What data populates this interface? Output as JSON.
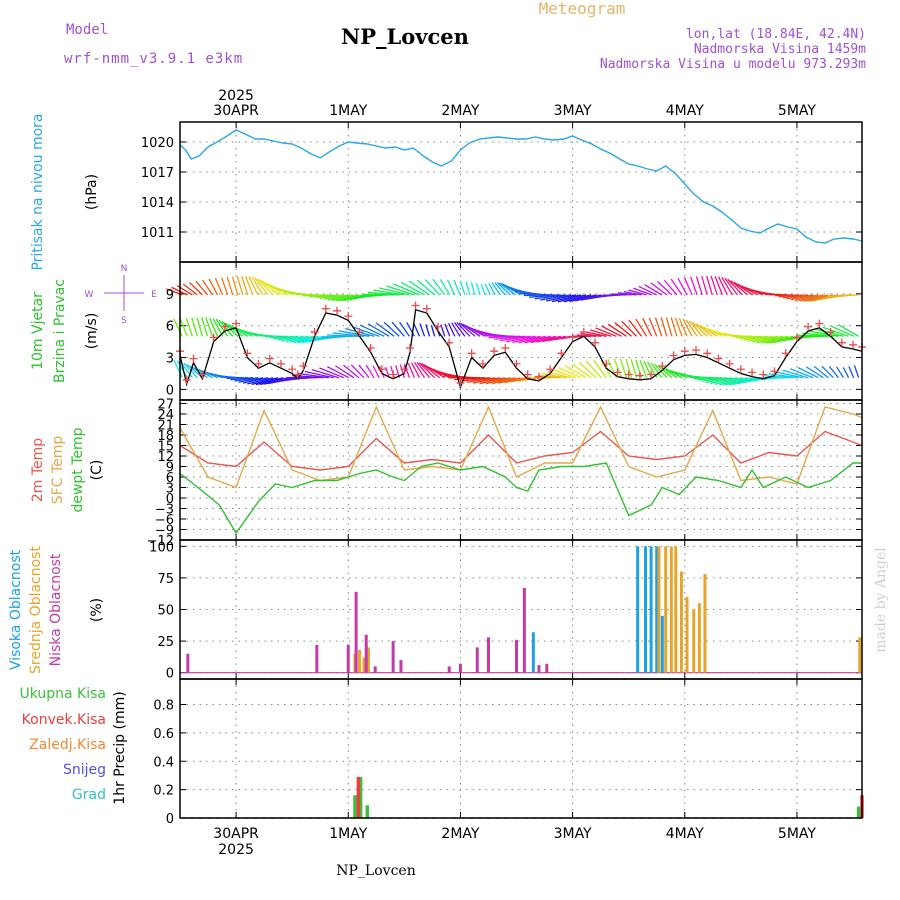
{
  "header": {
    "model_label": "Model",
    "model_value": "wrf-nmm_v3.9.1 e3km",
    "meteogram_label": "Meteogram",
    "station_title": "NP_Lovcen",
    "location_lines": [
      "lon,lat (18.84E, 42.4N)",
      "Nadmorska Visina 1459m",
      "Nadmorska Visina u modelu 973.293m"
    ]
  },
  "footer": {
    "station": "NP_Lovcen",
    "watermark": "made by Angel"
  },
  "colors": {
    "pressure": "#2aa7e4",
    "temp2m": "#e8574e",
    "sfc": "#e3a84a",
    "dew": "#2fc12f",
    "wind_speed": "#000000",
    "wind_marker": "#e84c4c",
    "cloud_high": "#1ea0e6",
    "cloud_mid": "#e6a52a",
    "cloud_low": "#c43aa8",
    "rain_total": "#3cbf3c",
    "rain_conv": "#e84040",
    "rain_frz": "#f08a30",
    "snow": "#5050e0",
    "hail": "#30c0c0",
    "label_purple": "#a050d0"
  },
  "chart_data": {
    "type": "meteogram",
    "time_axis": {
      "top_year": "2025",
      "bottom_year": "2025",
      "top_labels": [
        "30APR",
        "1MAY",
        "2MAY",
        "3MAY",
        "4MAY",
        "5MAY"
      ],
      "bottom_labels": [
        "30APR",
        "1MAY",
        "2MAY",
        "3MAY",
        "4MAY",
        "5MAY"
      ],
      "day_positions": [
        0.5,
        1.5,
        2.5,
        3.5,
        4.5,
        5.5
      ],
      "range": [
        0,
        6.08
      ]
    },
    "panels": [
      {
        "id": "pressure",
        "labels": [
          "Pritisak na nivou mora"
        ],
        "unit": "(hPa)",
        "ylim": [
          1008,
          1022
        ],
        "yticks": [
          1011,
          1014,
          1017,
          1020
        ],
        "series": [
          {
            "name": "Pritisak na nivou mora",
            "x": [
              0,
              0.05,
              0.1,
              0.17,
              0.25,
              0.33,
              0.42,
              0.5,
              0.58,
              0.67,
              0.75,
              0.83,
              0.92,
              1.0,
              1.08,
              1.17,
              1.25,
              1.33,
              1.42,
              1.5,
              1.58,
              1.67,
              1.75,
              1.83,
              1.92,
              2.0,
              2.08,
              2.17,
              2.25,
              2.33,
              2.42,
              2.5,
              2.58,
              2.67,
              2.75,
              2.83,
              2.92,
              3.0,
              3.08,
              3.17,
              3.25,
              3.33,
              3.42,
              3.5,
              3.58,
              3.67,
              3.75,
              3.83,
              3.92,
              4.0,
              4.08,
              4.17,
              4.25,
              4.33,
              4.42,
              4.5,
              4.58,
              4.67,
              4.75,
              4.83,
              4.92,
              5.0,
              5.08,
              5.17,
              5.25,
              5.33,
              5.42,
              5.5,
              5.58,
              5.67,
              5.75,
              5.83,
              5.92,
              6.0,
              6.08
            ],
            "y": [
              1019.7,
              1019.2,
              1018.3,
              1018.6,
              1019.5,
              1020.0,
              1020.6,
              1021.2,
              1020.8,
              1020.3,
              1020.3,
              1020.1,
              1019.9,
              1019.8,
              1019.4,
              1018.8,
              1018.4,
              1019.0,
              1019.6,
              1020.0,
              1019.9,
              1019.8,
              1019.6,
              1019.4,
              1019.5,
              1019.2,
              1019.4,
              1018.6,
              1018.0,
              1017.6,
              1018.1,
              1019.2,
              1019.9,
              1020.3,
              1020.4,
              1020.5,
              1020.4,
              1020.3,
              1020.3,
              1020.5,
              1020.3,
              1020.2,
              1020.3,
              1020.6,
              1020.2,
              1019.8,
              1019.3,
              1018.9,
              1018.3,
              1017.8,
              1017.6,
              1017.3,
              1017.1,
              1017.6,
              1016.8,
              1015.8,
              1014.8,
              1014.0,
              1013.6,
              1013.0,
              1012.2,
              1011.4,
              1011.1,
              1010.9,
              1011.4,
              1011.8,
              1011.5,
              1011.3,
              1010.5,
              1010.0,
              1009.9,
              1010.3,
              1010.4,
              1010.3,
              1010.1
            ]
          }
        ]
      },
      {
        "id": "wind",
        "labels": [
          "10m Vjetar",
          "Brzina i Pravac"
        ],
        "unit": "(m/s)",
        "compass": {
          "n": "N",
          "e": "E",
          "s": "S",
          "w": "W"
        },
        "ylim": [
          -1,
          12
        ],
        "yticks": [
          0,
          3,
          6,
          9
        ],
        "band_levels": [
          8.9,
          5.0,
          1.1
        ],
        "series": [
          {
            "name": "10m Vjetar Brzina",
            "x": [
              0,
              0.06,
              0.12,
              0.2,
              0.3,
              0.4,
              0.5,
              0.6,
              0.7,
              0.8,
              0.9,
              1.0,
              1.05,
              1.1,
              1.2,
              1.3,
              1.4,
              1.5,
              1.6,
              1.7,
              1.8,
              1.9,
              2.0,
              2.05,
              2.1,
              2.2,
              2.3,
              2.4,
              2.5,
              2.6,
              2.7,
              2.8,
              2.9,
              3.0,
              3.1,
              3.2,
              3.3,
              3.4,
              3.5,
              3.6,
              3.7,
              3.8,
              3.9,
              4.0,
              4.1,
              4.2,
              4.3,
              4.4,
              4.5,
              4.6,
              4.7,
              4.8,
              4.9,
              5.0,
              5.1,
              5.2,
              5.3,
              5.4,
              5.5,
              5.6,
              5.7,
              5.8,
              5.9,
              6.0,
              6.08
            ],
            "y": [
              3.2,
              0.5,
              2.5,
              1.0,
              4.5,
              5.5,
              5.8,
              3.0,
              2.0,
              2.5,
              2.0,
              1.5,
              1.0,
              1.8,
              5.0,
              7.2,
              7.0,
              6.5,
              5.0,
              3.5,
              1.5,
              1.0,
              1.5,
              3.5,
              7.5,
              7.2,
              5.5,
              4.0,
              0.2,
              3.0,
              2.0,
              3.2,
              3.5,
              2.0,
              1.0,
              0.8,
              1.5,
              3.0,
              4.5,
              5.0,
              4.0,
              2.0,
              1.2,
              1.0,
              0.9,
              1.0,
              1.8,
              2.8,
              3.2,
              3.3,
              3.0,
              2.5,
              2.0,
              1.5,
              1.2,
              1.0,
              1.3,
              3.0,
              4.5,
              5.5,
              5.8,
              5.0,
              4.0,
              3.8,
              3.6
            ]
          }
        ]
      },
      {
        "id": "temperature",
        "labels": [
          "2m Temp",
          "SFC Temp",
          "dewpt Temp"
        ],
        "unit": "(C)",
        "ylim": [
          -12,
          28
        ],
        "yticks": [
          -12,
          -9,
          -6,
          -3,
          0,
          3,
          6,
          9,
          12,
          15,
          18,
          21,
          24,
          27
        ],
        "series": [
          {
            "name": "2m Temp",
            "x": [
              0,
              0.25,
              0.5,
              0.75,
              1.0,
              1.25,
              1.5,
              1.75,
              2.0,
              2.25,
              2.5,
              2.75,
              3.0,
              3.25,
              3.5,
              3.75,
              4.0,
              4.25,
              4.5,
              4.75,
              5.0,
              5.25,
              5.5,
              5.75,
              6.0,
              6.08
            ],
            "y": [
              15,
              10,
              9,
              16,
              9,
              8,
              9,
              17,
              10,
              11,
              10,
              18,
              10,
              12,
              13,
              19,
              12,
              11,
              12,
              18,
              10,
              13,
              12,
              19,
              16,
              15
            ]
          },
          {
            "name": "SFC Temp",
            "x": [
              0,
              0.25,
              0.5,
              0.75,
              1.0,
              1.25,
              1.5,
              1.75,
              2.0,
              2.25,
              2.5,
              2.75,
              3.0,
              3.25,
              3.5,
              3.75,
              4.0,
              4.25,
              4.5,
              4.75,
              5.0,
              5.25,
              5.5,
              5.75,
              6.0,
              6.08
            ],
            "y": [
              20,
              6,
              3,
              25,
              8,
              5,
              6,
              26,
              8,
              9,
              8,
              26,
              6,
              10,
              10,
              26,
              9,
              6,
              8,
              25,
              5,
              6,
              4,
              26,
              24,
              23
            ]
          },
          {
            "name": "dewpt Temp",
            "x": [
              0,
              0.2,
              0.35,
              0.5,
              0.7,
              0.85,
              1.0,
              1.2,
              1.4,
              1.6,
              1.75,
              1.9,
              2.0,
              2.15,
              2.3,
              2.5,
              2.7,
              2.9,
              3.0,
              3.1,
              3.2,
              3.4,
              3.6,
              3.8,
              4.0,
              4.2,
              4.3,
              4.45,
              4.6,
              4.8,
              5.0,
              5.1,
              5.2,
              5.4,
              5.6,
              5.8,
              6.0,
              6.08
            ],
            "y": [
              7,
              2,
              -2,
              -10,
              -1,
              4,
              3,
              5,
              5,
              7,
              8,
              6,
              5,
              9,
              10,
              8,
              9,
              6,
              3,
              2,
              8,
              9,
              9,
              10,
              -5,
              -2,
              3,
              1,
              6,
              5,
              3,
              8,
              3,
              6,
              3,
              5,
              10,
              10
            ]
          }
        ]
      },
      {
        "id": "clouds",
        "labels": [
          "Visoka Oblacnost",
          "Srednja Oblacnost",
          "Niska Oblacnost"
        ],
        "unit": "(%)",
        "ylim": [
          -5,
          105
        ],
        "yticks": [
          0,
          25,
          50,
          75,
          100
        ],
        "series": [
          {
            "name": "Visoka Oblacnost",
            "type": "bar",
            "x": [
              4.08,
              4.15,
              4.2,
              4.25,
              4.3,
              3.15
            ],
            "y": [
              100,
              100,
              100,
              100,
              45,
              32
            ]
          },
          {
            "name": "Srednja Oblacnost",
            "type": "bar",
            "x": [
              1.56,
              1.6,
              1.64,
              1.68,
              4.27,
              4.33,
              4.38,
              4.42,
              4.47,
              4.52,
              4.58,
              4.63,
              4.68,
              6.06
            ],
            "y": [
              15,
              18,
              12,
              20,
              100,
              100,
              100,
              100,
              80,
              60,
              50,
              55,
              78,
              28
            ]
          },
          {
            "name": "Niska Oblacnost",
            "type": "bar",
            "x": [
              0.07,
              1.22,
              1.5,
              1.57,
              1.66,
              1.74,
              1.9,
              1.97,
              2.4,
              2.5,
              2.65,
              2.75,
              3.0,
              3.07,
              3.2,
              3.27
            ],
            "y": [
              15,
              22,
              22,
              64,
              30,
              5,
              25,
              10,
              5,
              7,
              20,
              28,
              26,
              67,
              6,
              7
            ]
          }
        ]
      },
      {
        "id": "precip",
        "labels": [
          "Ukupna Kisa",
          "Konvek.Kisa",
          "Zaledj.Kisa",
          "Snijeg",
          "Grad"
        ],
        "unit": "1hr Precip (mm)",
        "ylim": [
          0,
          0.98
        ],
        "yticks": [
          0,
          0.2,
          0.4,
          0.6,
          0.8
        ],
        "series": [
          {
            "name": "Ukupna Kisa",
            "type": "bar",
            "x": [
              1.56,
              1.61,
              1.67,
              6.05
            ],
            "y": [
              0.16,
              0.29,
              0.09,
              0.08
            ]
          },
          {
            "name": "Konvek.Kisa",
            "type": "bar",
            "x": [
              1.59,
              6.08
            ],
            "y": [
              0.29,
              0.16
            ]
          },
          {
            "name": "Zaledj.Kisa",
            "type": "bar",
            "x": [],
            "y": []
          },
          {
            "name": "Snijeg",
            "type": "bar",
            "x": [],
            "y": []
          },
          {
            "name": "Grad",
            "type": "bar",
            "x": [],
            "y": []
          }
        ]
      }
    ]
  }
}
